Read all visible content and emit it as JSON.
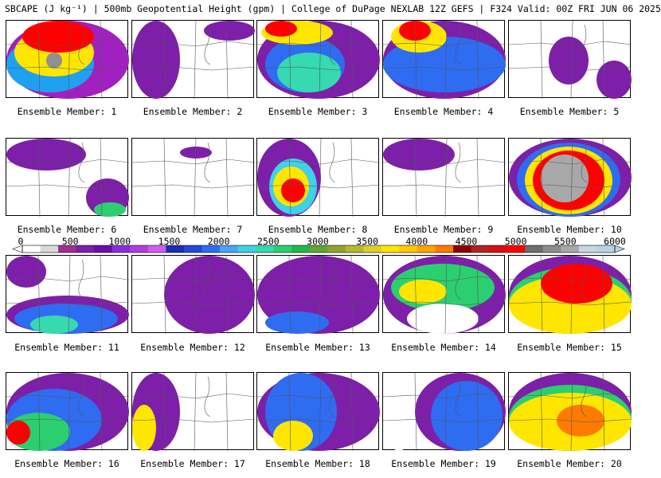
{
  "title": "SBCAPE (J kg⁻¹) | 500mb Geopotential Height (gpm) | College of DuPage NEXLAB 12Z GEFS | F324 Valid: 00Z FRI JUN 06 2025",
  "colorbar": {
    "ticks": [
      "0",
      "500",
      "1000",
      "1500",
      "2000",
      "2500",
      "3000",
      "3500",
      "4000",
      "4500",
      "5000",
      "5500",
      "6000"
    ],
    "range": [
      0,
      6000
    ],
    "colors": [
      "#ffffff",
      "#d9d9d9",
      "#a0308e",
      "#7d1fa8",
      "#6a0dad",
      "#8a2be2",
      "#b23cd9",
      "#d25cf0",
      "#1c2fb5",
      "#2447d8",
      "#2e6cf2",
      "#4aa3f6",
      "#3fd1e6",
      "#36d9b0",
      "#2bcf70",
      "#1fb84a",
      "#5fa632",
      "#8fa42a",
      "#b5b92c",
      "#e0cf2a",
      "#ffe600",
      "#ffc800",
      "#ffa500",
      "#ff7a00",
      "#8b0000",
      "#b22222",
      "#d61010",
      "#ff0000",
      "#6e6e6e",
      "#8c8c8c",
      "#a8a8a8",
      "#c6d6e0",
      "#b7d3e6"
    ]
  },
  "members": [
    {
      "label": "Ensemble Member: 1"
    },
    {
      "label": "Ensemble Member: 2"
    },
    {
      "label": "Ensemble Member: 3"
    },
    {
      "label": "Ensemble Member: 4"
    },
    {
      "label": "Ensemble Member: 5"
    },
    {
      "label": "Ensemble Member: 6"
    },
    {
      "label": "Ensemble Member: 7"
    },
    {
      "label": "Ensemble Member: 8"
    },
    {
      "label": "Ensemble Member: 9"
    },
    {
      "label": "Ensemble Member: 10"
    },
    {
      "label": "Ensemble Member: 11"
    },
    {
      "label": "Ensemble Member: 12"
    },
    {
      "label": "Ensemble Member: 13"
    },
    {
      "label": "Ensemble Member: 14"
    },
    {
      "label": "Ensemble Member: 15"
    },
    {
      "label": "Ensemble Member: 16"
    },
    {
      "label": "Ensemble Member: 17"
    },
    {
      "label": "Ensemble Member: 18"
    },
    {
      "label": "Ensemble Member: 19"
    },
    {
      "label": "Ensemble Member: 20"
    }
  ]
}
